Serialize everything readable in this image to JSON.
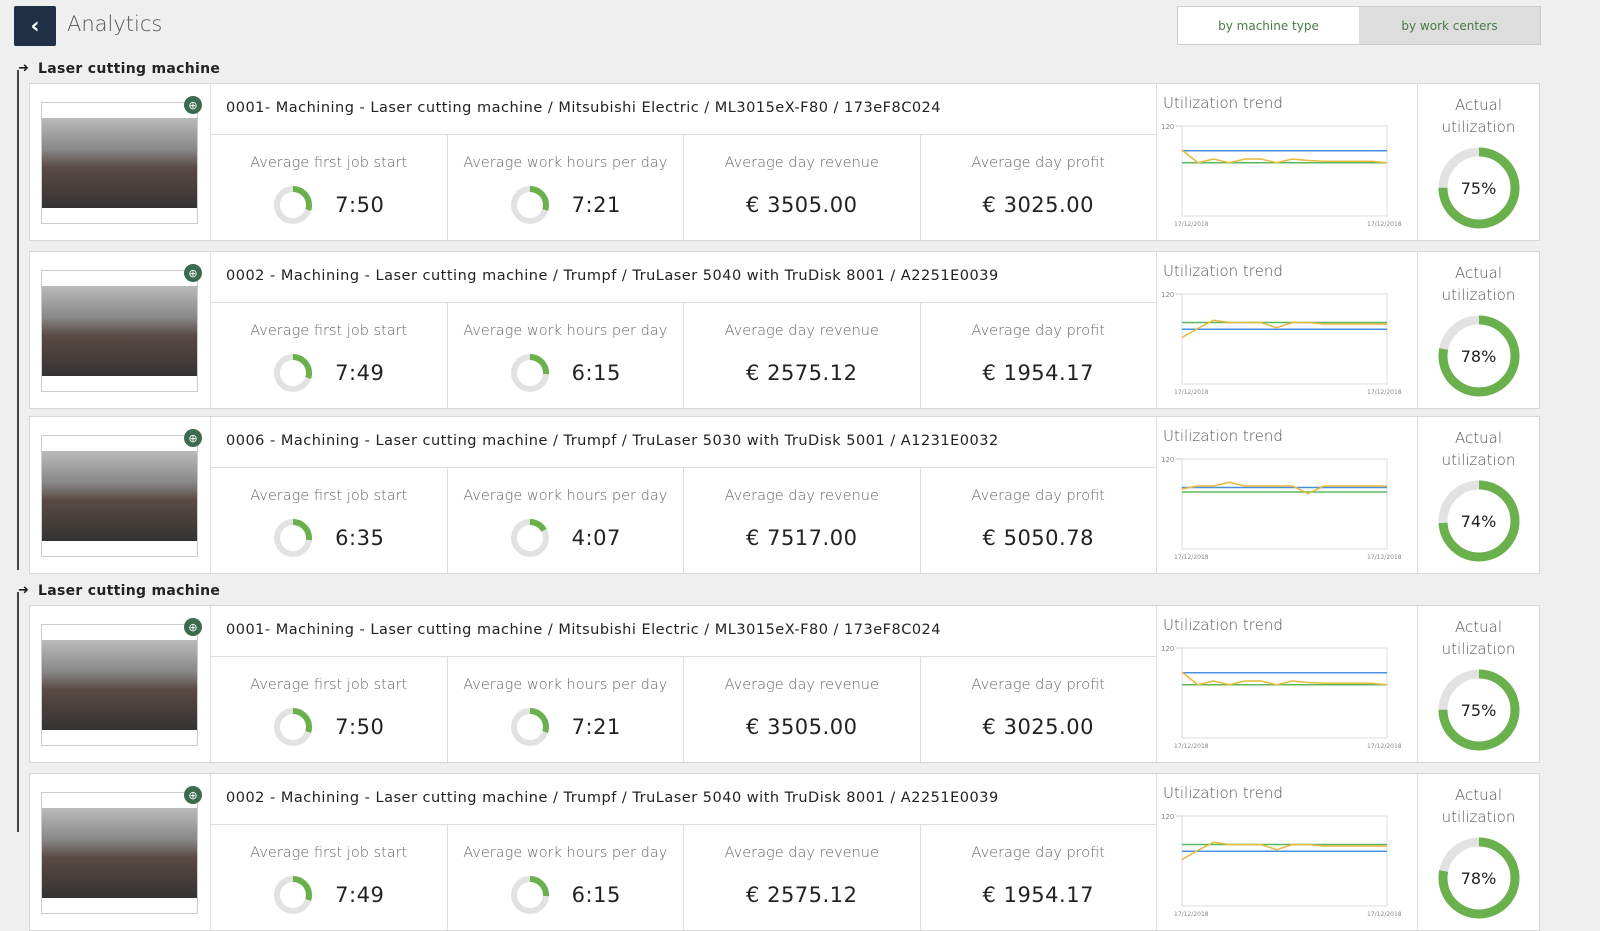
{
  "header": {
    "title": "Analytics",
    "back_icon": "chevron-left-icon",
    "tabs": [
      {
        "label": "by machine type",
        "active": true
      },
      {
        "label": "by work centers",
        "active": false
      }
    ]
  },
  "labels": {
    "first_job": "Average first job start",
    "work_hours": "Average work hours per day",
    "revenue": "Average day revenue",
    "profit": "Average day profit",
    "trend": "Utilization trend",
    "actual": "Actual utilization",
    "y_max": "120",
    "date_start": "17/12/2018",
    "date_end": "17/12/2018"
  },
  "colors": {
    "accent": "#6ab04c",
    "target": "#4a90e2",
    "baseline": "#5cb85c",
    "series": "#e6b83c",
    "ring_bg": "#e2e2e2"
  },
  "groups": [
    {
      "label": "Laser cutting machine"
    },
    {
      "label": "Laser cutting machine"
    }
  ],
  "machines": [
    {
      "title": "0001- Machining - Laser cutting machine / Mitsubishi Electric / ML3015eX-F80 / 173eF8C024",
      "first_job": "7:50",
      "first_job_fill": 0.3,
      "work_hours": "7:21",
      "work_hours_fill": 0.3,
      "revenue": "€ 3505.00",
      "profit": "€ 3025.00",
      "utilization": "75%",
      "utilization_value": 75,
      "trend": {
        "target": 87,
        "baseline": 71,
        "series": [
          88,
          71,
          76,
          71,
          76,
          76,
          71,
          76,
          74,
          73,
          73,
          73,
          73,
          71
        ]
      }
    },
    {
      "title": "0002 - Machining - Laser cutting machine / Trumpf / TruLaser 5040 with TruDisk 8001 / A2251E0039",
      "first_job": "7:49",
      "first_job_fill": 0.3,
      "work_hours": "6:15",
      "work_hours_fill": 0.26,
      "revenue": "€ 2575.12",
      "profit": "€ 1954.17",
      "utilization": "78%",
      "utilization_value": 78,
      "trend": {
        "target": 73,
        "baseline": 82,
        "series": [
          62,
          74,
          85,
          82,
          82,
          82,
          75,
          82,
          82,
          80,
          80,
          80,
          80,
          80
        ]
      }
    },
    {
      "title": "0006 - Machining - Laser cutting machine / Trumpf / TruLaser 5030 with TruDisk 5001 / A1231E0032",
      "first_job": "6:35",
      "first_job_fill": 0.27,
      "work_hours": "4:07",
      "work_hours_fill": 0.17,
      "revenue": "€ 7517.00",
      "profit": "€ 5050.78",
      "utilization": "74%",
      "utilization_value": 74,
      "trend": {
        "target": 82,
        "baseline": 76,
        "series": [
          80,
          84,
          84,
          89,
          84,
          84,
          84,
          84,
          74,
          84,
          84,
          84,
          84,
          84
        ]
      }
    },
    {
      "title": "0001- Machining - Laser cutting machine / Mitsubishi Electric / ML3015eX-F80 / 173eF8C024",
      "first_job": "7:50",
      "first_job_fill": 0.3,
      "work_hours": "7:21",
      "work_hours_fill": 0.3,
      "revenue": "€ 3505.00",
      "profit": "€ 3025.00",
      "utilization": "75%",
      "utilization_value": 75,
      "trend": {
        "target": 87,
        "baseline": 71,
        "series": [
          88,
          71,
          76,
          71,
          76,
          76,
          71,
          76,
          74,
          73,
          73,
          73,
          73,
          71
        ]
      }
    },
    {
      "title": "0002 - Machining - Laser cutting machine / Trumpf / TruLaser 5040 with TruDisk 8001 / A2251E0039",
      "first_job": "7:49",
      "first_job_fill": 0.3,
      "work_hours": "6:15",
      "work_hours_fill": 0.26,
      "revenue": "€ 2575.12",
      "profit": "€ 1954.17",
      "utilization": "78%",
      "utilization_value": 78,
      "trend": {
        "target": 73,
        "baseline": 82,
        "series": [
          62,
          74,
          85,
          82,
          82,
          82,
          75,
          82,
          82,
          80,
          80,
          80,
          80,
          80
        ]
      }
    }
  ]
}
